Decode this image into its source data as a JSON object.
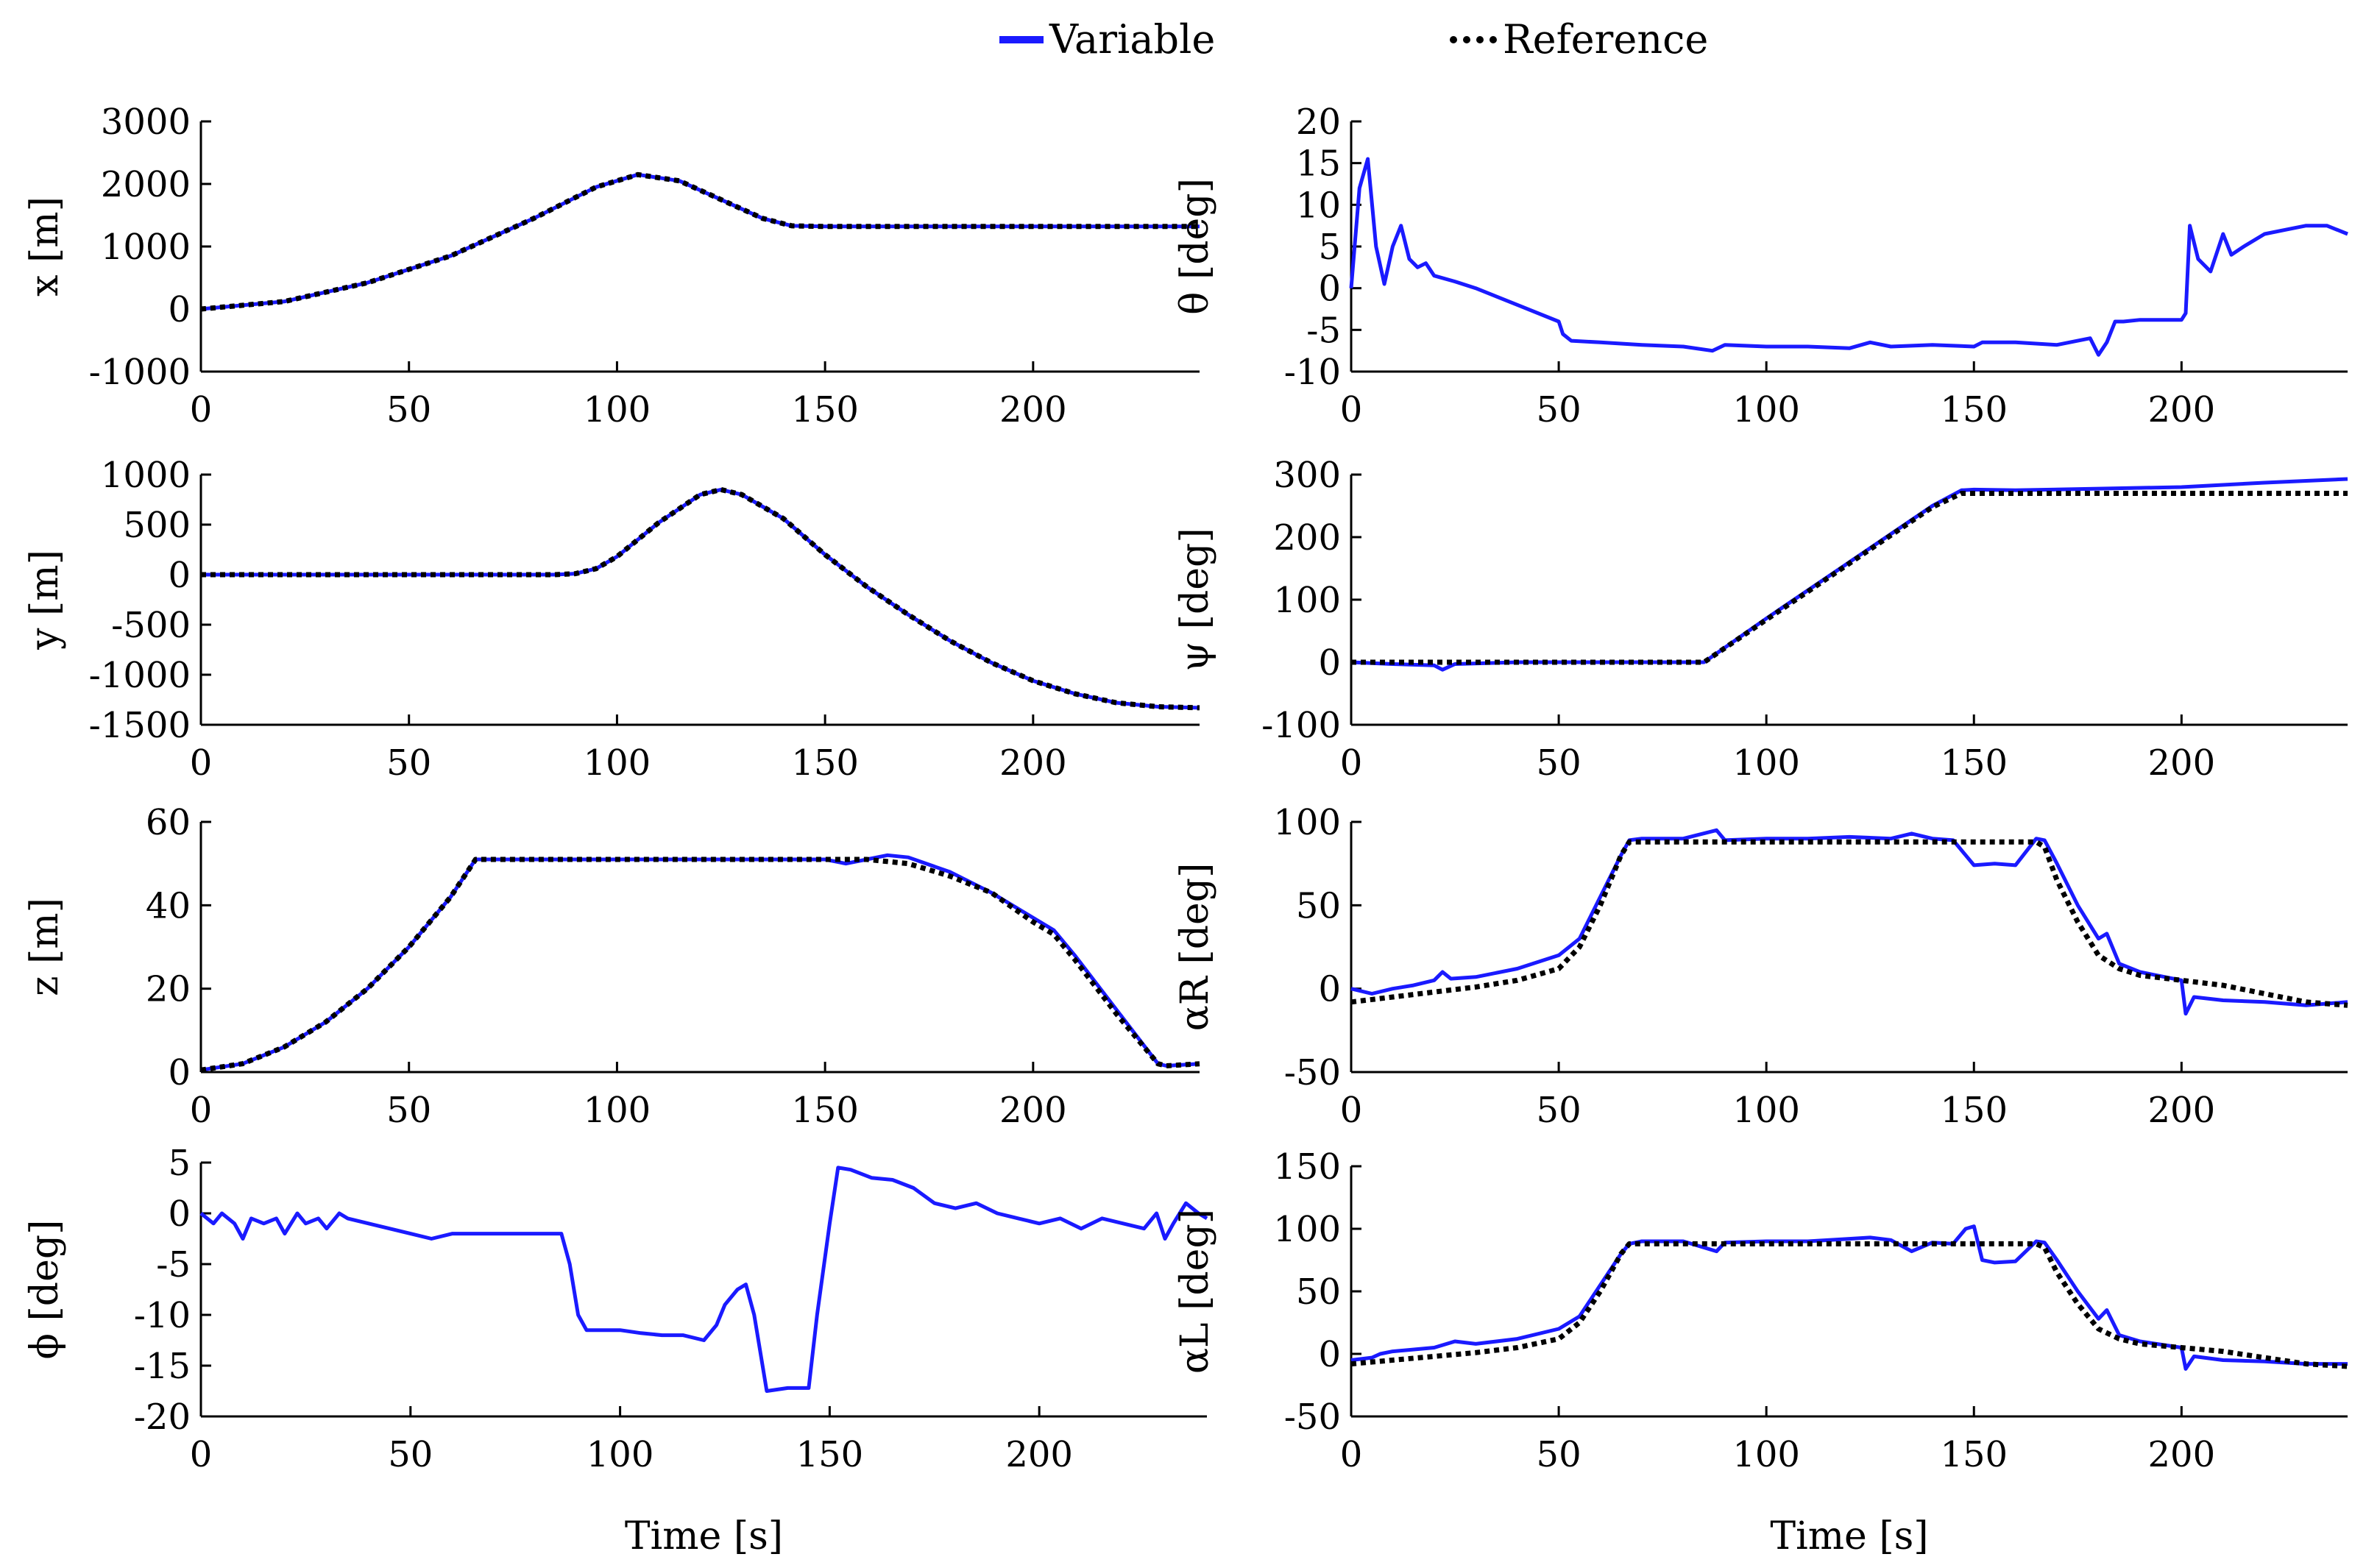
{
  "legend": {
    "variable_label": "Variable",
    "reference_label": "Reference",
    "variable_color": "#1a1aff",
    "reference_color": "#000000"
  },
  "chart_data": [
    {
      "type": "line",
      "id": "x",
      "ylabel": "x [m]",
      "xlabel": "",
      "xlim": [
        0,
        240
      ],
      "ylim": [
        -1000,
        3000
      ],
      "yticks": [
        3000,
        2000,
        1000,
        0,
        -1000
      ],
      "xticks": [
        0,
        50,
        100,
        150,
        200
      ],
      "series": [
        {
          "name": "Variable",
          "x": [
            0,
            20,
            40,
            60,
            80,
            95,
            105,
            115,
            125,
            135,
            142,
            150,
            200,
            240
          ],
          "values": [
            0,
            120,
            420,
            850,
            1450,
            1950,
            2150,
            2050,
            1750,
            1450,
            1330,
            1320,
            1320,
            1320
          ]
        },
        {
          "name": "Reference",
          "x": [
            0,
            20,
            40,
            60,
            80,
            95,
            105,
            115,
            125,
            135,
            142,
            150,
            200,
            240
          ],
          "values": [
            0,
            120,
            420,
            850,
            1450,
            1950,
            2150,
            2050,
            1750,
            1450,
            1330,
            1320,
            1320,
            1320
          ]
        }
      ]
    },
    {
      "type": "line",
      "id": "theta",
      "ylabel": "θ [deg]",
      "xlabel": "",
      "xlim": [
        0,
        240
      ],
      "ylim": [
        -10,
        20
      ],
      "yticks": [
        20,
        15,
        10,
        5,
        0,
        -5,
        -10
      ],
      "xticks": [
        0,
        50,
        100,
        150,
        200
      ],
      "series": [
        {
          "name": "Variable",
          "x": [
            0,
            2,
            4,
            6,
            8,
            10,
            12,
            14,
            16,
            18,
            20,
            25,
            30,
            40,
            50,
            51,
            53,
            60,
            70,
            80,
            87,
            90,
            100,
            110,
            120,
            125,
            130,
            140,
            150,
            152,
            160,
            170,
            178,
            180,
            182,
            184,
            186,
            190,
            200,
            201,
            202,
            204,
            207,
            210,
            212,
            215,
            220,
            225,
            230,
            235,
            240
          ],
          "values": [
            0,
            12,
            15.5,
            5,
            0.5,
            5,
            7.5,
            3.5,
            2.5,
            3,
            1.5,
            0.8,
            0,
            -2,
            -4,
            -5.5,
            -6.3,
            -6.5,
            -6.8,
            -7,
            -7.5,
            -6.8,
            -7,
            -7,
            -7.2,
            -6.5,
            -7,
            -6.8,
            -7,
            -6.5,
            -6.5,
            -6.8,
            -6,
            -8,
            -6.5,
            -4,
            -4,
            -3.8,
            -3.8,
            -3,
            7.5,
            3.5,
            2,
            6.5,
            4,
            5,
            6.5,
            7,
            7.5,
            7.5,
            6.5
          ]
        },
        {
          "name": "Reference",
          "x": [],
          "values": []
        }
      ]
    },
    {
      "type": "line",
      "id": "y",
      "ylabel": "y [m]",
      "xlabel": "",
      "xlim": [
        0,
        240
      ],
      "ylim": [
        -1500,
        1000
      ],
      "yticks": [
        1000,
        500,
        0,
        -500,
        -1000,
        -1500
      ],
      "xticks": [
        0,
        50,
        100,
        150,
        200
      ],
      "series": [
        {
          "name": "Variable",
          "x": [
            0,
            85,
            90,
            95,
            100,
            110,
            120,
            125,
            130,
            140,
            150,
            160,
            170,
            180,
            190,
            200,
            210,
            220,
            230,
            240
          ],
          "values": [
            0,
            0,
            10,
            60,
            180,
            520,
            800,
            850,
            800,
            560,
            200,
            -120,
            -400,
            -660,
            -880,
            -1060,
            -1190,
            -1280,
            -1320,
            -1330
          ]
        },
        {
          "name": "Reference",
          "x": [
            0,
            85,
            90,
            95,
            100,
            110,
            120,
            125,
            130,
            140,
            150,
            160,
            170,
            180,
            190,
            200,
            210,
            220,
            230,
            240
          ],
          "values": [
            0,
            0,
            10,
            60,
            180,
            520,
            800,
            850,
            800,
            560,
            200,
            -120,
            -400,
            -660,
            -880,
            -1060,
            -1190,
            -1280,
            -1320,
            -1330
          ]
        }
      ]
    },
    {
      "type": "line",
      "id": "psi",
      "ylabel": "ψ [deg]",
      "xlabel": "",
      "xlim": [
        0,
        240
      ],
      "ylim": [
        -100,
        300
      ],
      "yticks": [
        300,
        200,
        100,
        0,
        -100
      ],
      "xticks": [
        0,
        50,
        100,
        150,
        200
      ],
      "series": [
        {
          "name": "Variable",
          "x": [
            0,
            10,
            20,
            22,
            25,
            40,
            60,
            85,
            100,
            120,
            140,
            147,
            150,
            160,
            200,
            220,
            240
          ],
          "values": [
            0,
            -3,
            -5,
            -12,
            -3,
            0,
            0,
            0,
            70,
            160,
            250,
            275,
            276,
            275,
            280,
            287,
            293
          ]
        },
        {
          "name": "Reference",
          "x": [
            0,
            85,
            100,
            120,
            140,
            147,
            150,
            240
          ],
          "values": [
            0,
            0,
            68,
            158,
            248,
            270,
            270,
            270
          ]
        }
      ]
    },
    {
      "type": "line",
      "id": "z",
      "ylabel": "z [m]",
      "xlabel": "",
      "xlim": [
        0,
        240
      ],
      "ylim": [
        0,
        60
      ],
      "yticks": [
        60,
        40,
        20,
        0
      ],
      "xticks": [
        0,
        50,
        100,
        150,
        200
      ],
      "series": [
        {
          "name": "Variable",
          "x": [
            0,
            10,
            20,
            30,
            40,
            50,
            60,
            66,
            100,
            150,
            155,
            160,
            165,
            170,
            180,
            190,
            200,
            205,
            210,
            220,
            230,
            232,
            240
          ],
          "values": [
            0.5,
            2,
            6,
            12,
            20,
            30,
            42,
            51,
            51,
            51,
            50,
            51,
            52,
            51.5,
            48,
            43,
            37,
            34,
            28,
            15,
            2,
            1.5,
            2
          ]
        },
        {
          "name": "Reference",
          "x": [
            0,
            10,
            20,
            30,
            40,
            50,
            60,
            66,
            100,
            150,
            160,
            170,
            180,
            190,
            200,
            205,
            210,
            220,
            230,
            232,
            240
          ],
          "values": [
            0.5,
            2,
            6,
            12,
            20,
            30,
            42,
            51,
            51,
            51,
            51,
            50,
            47,
            43,
            36,
            33,
            27,
            14,
            2,
            1.5,
            2
          ]
        }
      ]
    },
    {
      "type": "line",
      "id": "alpha_r",
      "ylabel": "αR [deg]",
      "xlabel": "",
      "xlim": [
        0,
        240
      ],
      "ylim": [
        -50,
        100
      ],
      "yticks": [
        100,
        50,
        0,
        -50
      ],
      "xticks": [
        0,
        50,
        100,
        150,
        200
      ],
      "series": [
        {
          "name": "Variable",
          "x": [
            0,
            5,
            10,
            15,
            20,
            22,
            24,
            30,
            40,
            50,
            55,
            60,
            65,
            67,
            70,
            80,
            88,
            90,
            100,
            110,
            120,
            130,
            135,
            140,
            145,
            148,
            150,
            155,
            160,
            165,
            167,
            170,
            175,
            180,
            182,
            185,
            190,
            200,
            201,
            203,
            210,
            220,
            230,
            240
          ],
          "values": [
            0,
            -3,
            0,
            2,
            5,
            10,
            6,
            7,
            12,
            20,
            30,
            55,
            80,
            89,
            90,
            90,
            95,
            89,
            90,
            90,
            91,
            90,
            93,
            90,
            89,
            80,
            74,
            75,
            74,
            90,
            89,
            75,
            50,
            30,
            33,
            15,
            10,
            5,
            -15,
            -5,
            -7,
            -8,
            -10,
            -8
          ]
        },
        {
          "name": "Reference",
          "x": [
            0,
            10,
            20,
            30,
            40,
            50,
            55,
            60,
            65,
            67,
            100,
            150,
            160,
            165,
            167,
            170,
            175,
            180,
            185,
            190,
            200,
            210,
            220,
            230,
            240
          ],
          "values": [
            -8,
            -5,
            -2,
            1,
            5,
            12,
            25,
            50,
            80,
            88,
            88,
            88,
            88,
            88,
            85,
            65,
            40,
            20,
            12,
            8,
            5,
            2,
            -3,
            -8,
            -10
          ]
        }
      ]
    },
    {
      "type": "line",
      "id": "phi",
      "ylabel": "ϕ [deg]",
      "xlabel": "Time [s]",
      "xlim": [
        0,
        240
      ],
      "ylim": [
        -20,
        5
      ],
      "yticks": [
        5,
        0,
        -5,
        -10,
        -15,
        -20
      ],
      "xticks": [
        0,
        50,
        100,
        150,
        200
      ],
      "series": [
        {
          "name": "Variable",
          "x": [
            0,
            3,
            5,
            8,
            10,
            12,
            15,
            18,
            20,
            23,
            25,
            28,
            30,
            33,
            35,
            40,
            45,
            50,
            55,
            60,
            65,
            70,
            75,
            80,
            86,
            88,
            90,
            92,
            95,
            100,
            105,
            110,
            115,
            120,
            123,
            125,
            128,
            130,
            132,
            135,
            140,
            145,
            147,
            150,
            152,
            155,
            160,
            165,
            170,
            175,
            180,
            185,
            190,
            195,
            200,
            205,
            210,
            215,
            220,
            225,
            228,
            230,
            232,
            235,
            238,
            240
          ],
          "values": [
            0,
            -1,
            0,
            -1,
            -2.5,
            -0.5,
            -1,
            -0.5,
            -2,
            0,
            -1,
            -0.5,
            -1.5,
            0,
            -0.5,
            -1,
            -1.5,
            -2,
            -2.5,
            -2,
            -2,
            -2,
            -2,
            -2,
            -2,
            -5,
            -10,
            -11.5,
            -11.5,
            -11.5,
            -11.8,
            -12,
            -12,
            -12.5,
            -11,
            -9,
            -7.5,
            -7,
            -10,
            -17.5,
            -17.2,
            -17.2,
            -10,
            -1,
            4.5,
            4.3,
            3.5,
            3.3,
            2.5,
            1,
            0.5,
            1,
            0,
            -0.5,
            -1,
            -0.5,
            -1.5,
            -0.5,
            -1,
            -1.5,
            0,
            -2.5,
            -1,
            1,
            0,
            -0.5
          ]
        },
        {
          "name": "Reference",
          "x": [],
          "values": []
        }
      ]
    },
    {
      "type": "line",
      "id": "alpha_l",
      "ylabel": "αL [deg]",
      "xlabel": "Time [s]",
      "xlim": [
        0,
        240
      ],
      "ylim": [
        -50,
        150
      ],
      "yticks": [
        150,
        100,
        50,
        0,
        -50
      ],
      "xticks": [
        0,
        50,
        100,
        150,
        200
      ],
      "series": [
        {
          "name": "Variable",
          "x": [
            0,
            5,
            7,
            10,
            20,
            25,
            30,
            40,
            50,
            55,
            60,
            65,
            67,
            70,
            80,
            88,
            90,
            100,
            110,
            120,
            125,
            130,
            135,
            140,
            145,
            148,
            150,
            152,
            155,
            160,
            165,
            167,
            170,
            175,
            180,
            182,
            185,
            190,
            200,
            201,
            203,
            210,
            220,
            230,
            240
          ],
          "values": [
            -5,
            -3,
            0,
            2,
            5,
            10,
            8,
            12,
            20,
            30,
            55,
            80,
            88,
            90,
            90,
            82,
            89,
            90,
            90,
            92,
            93,
            91,
            82,
            89,
            88,
            100,
            102,
            75,
            73,
            74,
            90,
            89,
            75,
            50,
            28,
            35,
            15,
            10,
            5,
            -12,
            -2,
            -5,
            -6,
            -8,
            -8
          ]
        },
        {
          "name": "Reference",
          "x": [
            0,
            10,
            20,
            30,
            40,
            50,
            55,
            60,
            65,
            67,
            100,
            150,
            160,
            165,
            167,
            170,
            175,
            180,
            185,
            190,
            200,
            210,
            220,
            230,
            240
          ],
          "values": [
            -8,
            -5,
            -2,
            1,
            5,
            12,
            25,
            50,
            80,
            88,
            88,
            88,
            88,
            88,
            85,
            65,
            40,
            20,
            12,
            8,
            5,
            2,
            -3,
            -8,
            -10
          ]
        }
      ]
    }
  ]
}
